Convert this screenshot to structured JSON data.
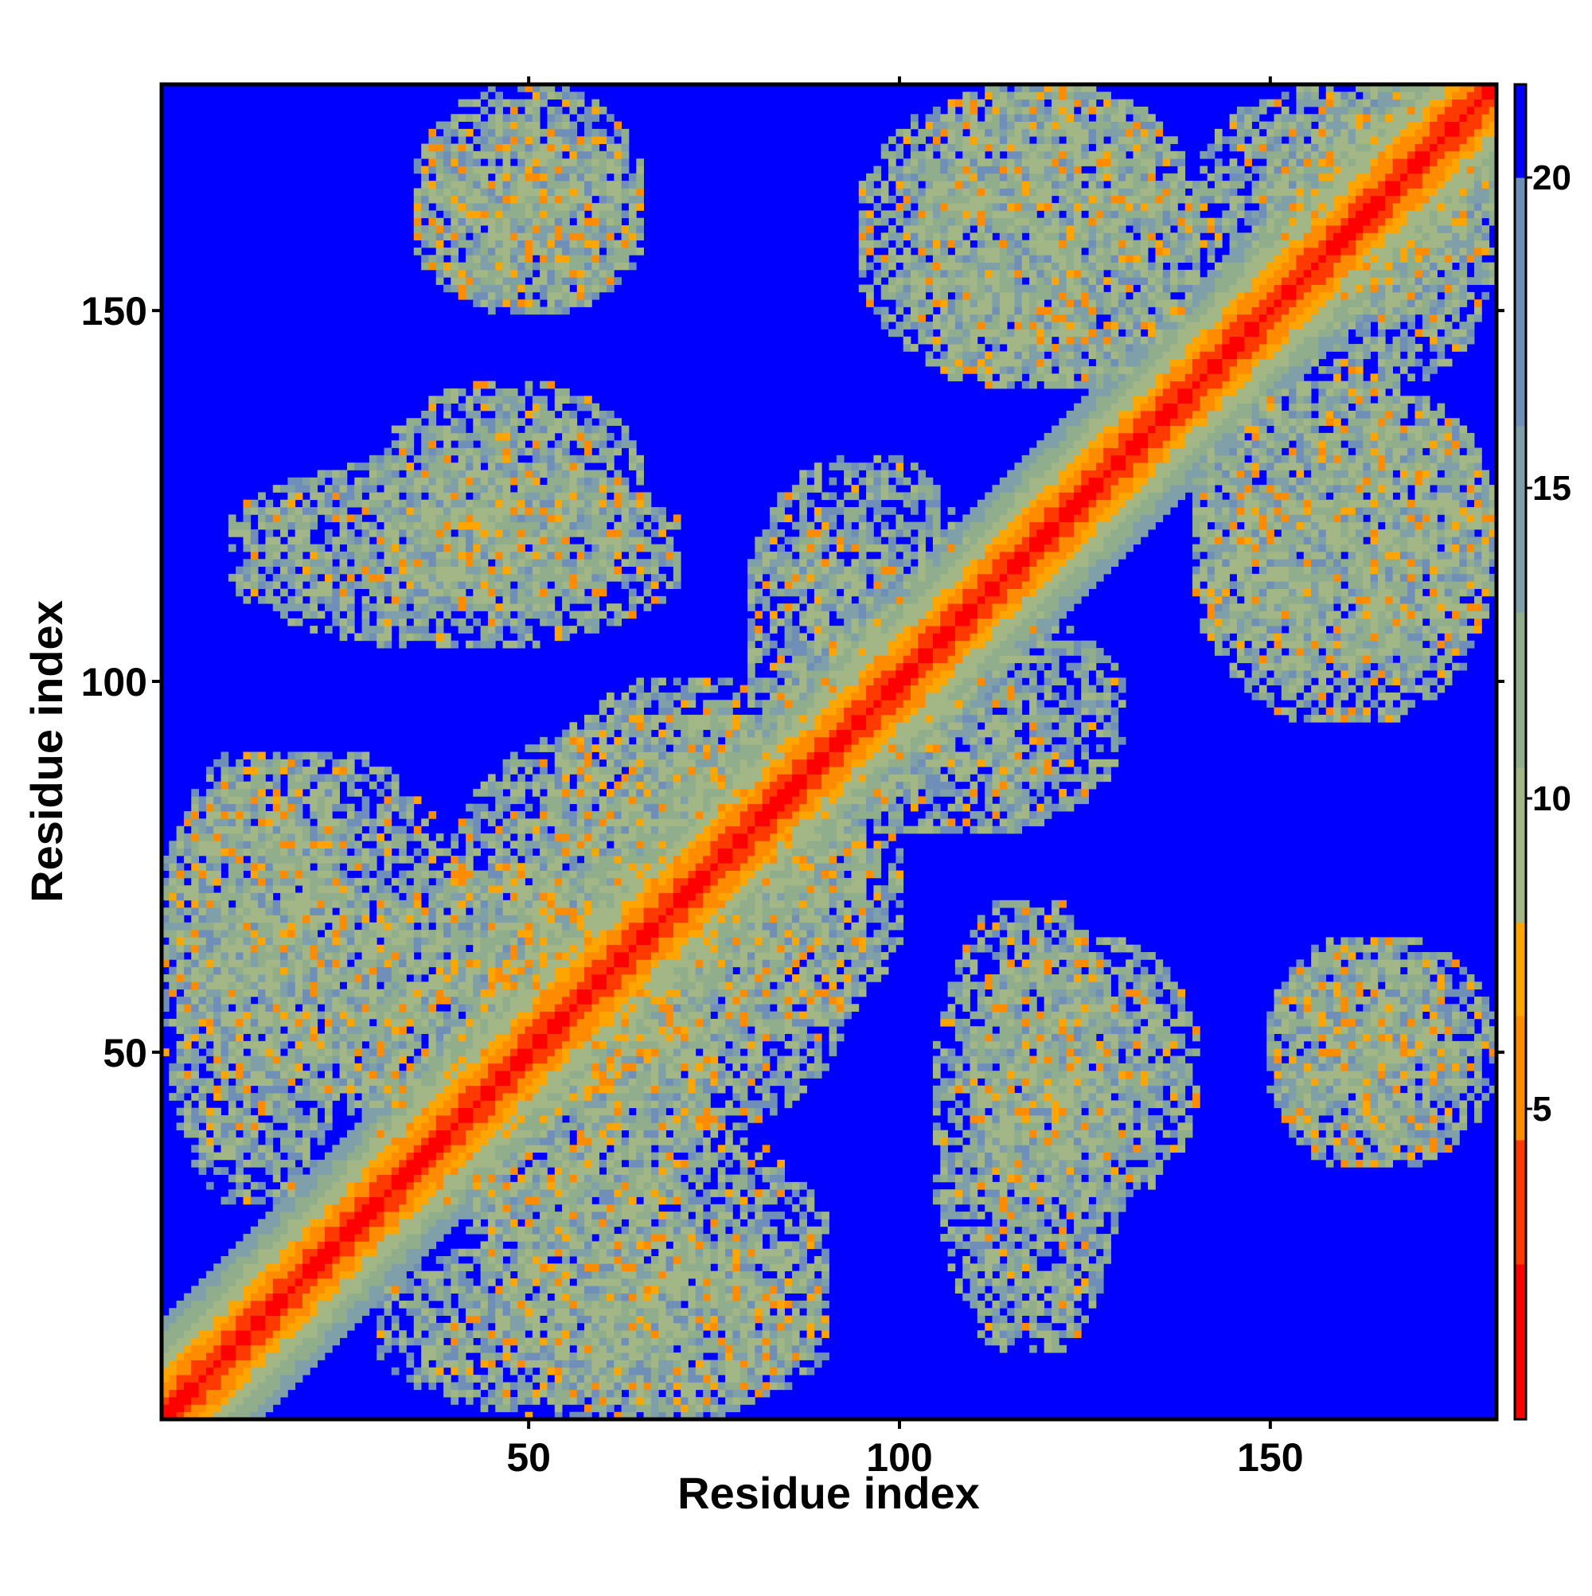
{
  "chart_data": {
    "type": "heatmap",
    "title": "",
    "xlabel": "Residue index",
    "ylabel": "Residue index",
    "xlim": [
      1,
      180
    ],
    "ylim": [
      1,
      180
    ],
    "x_ticks": [
      50,
      100,
      150
    ],
    "y_ticks": [
      50,
      100,
      150
    ],
    "x_tick_labels": [
      "50",
      "100",
      "150"
    ],
    "y_tick_labels": [
      "50",
      "100",
      "150"
    ],
    "n_residues": 180,
    "grid": false,
    "legend": "colorbar-right",
    "colorbar": {
      "range": [
        0,
        21.5
      ],
      "ticks": [
        5,
        10,
        15,
        20
      ],
      "tick_labels": [
        "5",
        "10",
        "15",
        "20"
      ],
      "colors": [
        {
          "from": 0,
          "to": 2.5,
          "color": "#ff0000"
        },
        {
          "from": 2.5,
          "to": 4.5,
          "color": "#ff3a00"
        },
        {
          "from": 4.5,
          "to": 6.5,
          "color": "#ff8c00"
        },
        {
          "from": 6.5,
          "to": 8.0,
          "color": "#ffa500"
        },
        {
          "from": 8.0,
          "to": 10.5,
          "color": "#a2b686"
        },
        {
          "from": 10.5,
          "to": 13.0,
          "color": "#90ad8c"
        },
        {
          "from": 13.0,
          "to": 16.0,
          "color": "#7f9fa9"
        },
        {
          "from": 16.0,
          "to": 20.0,
          "color": "#6f8fb8"
        },
        {
          "from": 20.0,
          "to": 21.5,
          "color": "#0000ff"
        }
      ]
    },
    "contact_regions": [
      {
        "x": [
          1,
          25
        ],
        "y": [
          30,
          90
        ]
      },
      {
        "x": [
          25,
          65
        ],
        "y": [
          30,
          75
        ]
      },
      {
        "x": [
          30,
          65
        ],
        "y": [
          110,
          140
        ]
      },
      {
        "x": [
          35,
          65
        ],
        "y": [
          150,
          180
        ]
      },
      {
        "x": [
          45,
          90
        ],
        "y": [
          1,
          40
        ]
      },
      {
        "x": [
          50,
          95
        ],
        "y": [
          40,
          100
        ]
      },
      {
        "x": [
          80,
          110
        ],
        "y": [
          85,
          130
        ]
      },
      {
        "x": [
          95,
          140
        ],
        "y": [
          140,
          180
        ]
      },
      {
        "x": [
          105,
          130
        ],
        "y": [
          10,
          70
        ]
      },
      {
        "x": [
          150,
          175
        ],
        "y": [
          35,
          65
        ]
      },
      {
        "x": [
          140,
          180
        ],
        "y": [
          100,
          140
        ]
      },
      {
        "x": [
          150,
          180
        ],
        "y": [
          140,
          180
        ]
      }
    ]
  }
}
